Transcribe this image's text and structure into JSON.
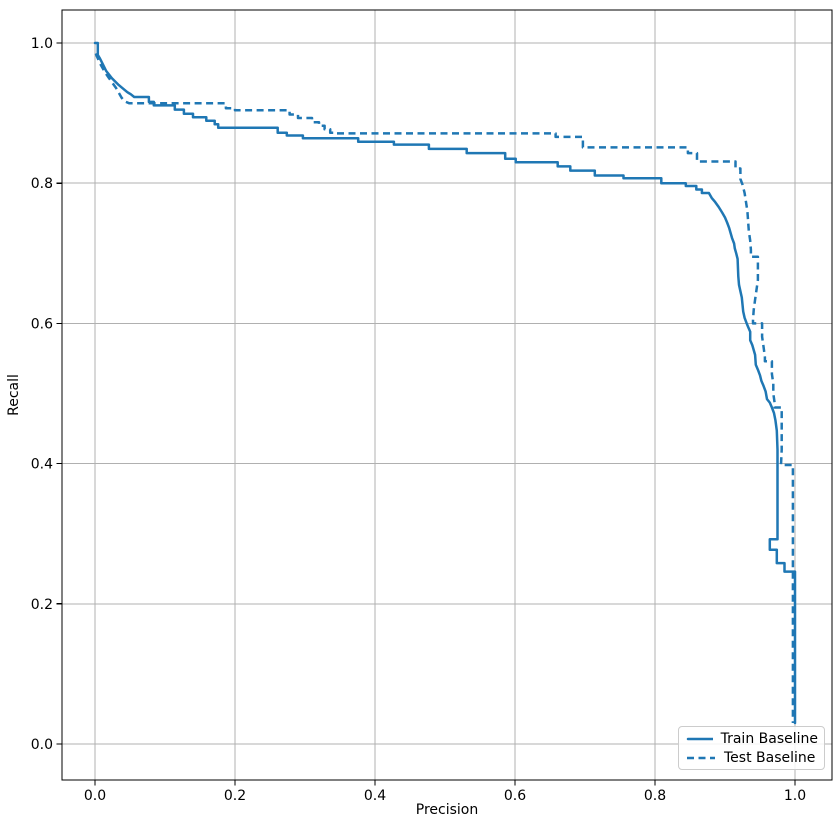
{
  "figure": {
    "background": "#ffffff"
  },
  "chart_data": {
    "type": "line",
    "title": "",
    "xlabel": "Precision",
    "ylabel": "Recall",
    "xlim": [
      -0.05,
      1.05
    ],
    "ylim": [
      -0.05,
      1.05
    ],
    "grid": true,
    "grid_color": "#b0b0b0",
    "legend_position": "lower right",
    "x_ticks": [
      0.0,
      0.2,
      0.4,
      0.6,
      0.8,
      1.0
    ],
    "y_ticks": [
      0.0,
      0.2,
      0.4,
      0.6,
      0.8,
      1.0
    ],
    "x_tick_labels": [
      "0.0",
      "0.2",
      "0.4",
      "0.6",
      "0.8",
      "1.0"
    ],
    "y_tick_labels": [
      "0.0",
      "0.2",
      "0.4",
      "0.6",
      "0.8",
      "1.0"
    ],
    "series": [
      {
        "name": "Train Baseline",
        "style": "solid",
        "color": "#1f77b4",
        "linewidth": 2.5,
        "points": [
          [
            0.0,
            1.0
          ],
          [
            0.004,
            1.0
          ],
          [
            0.004,
            0.983
          ],
          [
            0.007,
            0.978
          ],
          [
            0.01,
            0.972
          ],
          [
            0.013,
            0.966
          ],
          [
            0.016,
            0.96
          ],
          [
            0.02,
            0.955
          ],
          [
            0.024,
            0.95
          ],
          [
            0.029,
            0.945
          ],
          [
            0.034,
            0.94
          ],
          [
            0.04,
            0.935
          ],
          [
            0.046,
            0.93
          ],
          [
            0.051,
            0.927
          ],
          [
            0.056,
            0.923
          ],
          [
            0.077,
            0.923
          ],
          [
            0.077,
            0.916
          ],
          [
            0.084,
            0.916
          ],
          [
            0.084,
            0.911
          ],
          [
            0.114,
            0.911
          ],
          [
            0.114,
            0.905
          ],
          [
            0.127,
            0.905
          ],
          [
            0.127,
            0.899
          ],
          [
            0.14,
            0.899
          ],
          [
            0.14,
            0.894
          ],
          [
            0.159,
            0.894
          ],
          [
            0.159,
            0.889
          ],
          [
            0.171,
            0.889
          ],
          [
            0.171,
            0.884
          ],
          [
            0.176,
            0.884
          ],
          [
            0.176,
            0.879
          ],
          [
            0.261,
            0.879
          ],
          [
            0.261,
            0.872
          ],
          [
            0.274,
            0.872
          ],
          [
            0.274,
            0.868
          ],
          [
            0.297,
            0.868
          ],
          [
            0.297,
            0.864
          ],
          [
            0.376,
            0.864
          ],
          [
            0.376,
            0.859
          ],
          [
            0.427,
            0.859
          ],
          [
            0.427,
            0.855
          ],
          [
            0.477,
            0.855
          ],
          [
            0.477,
            0.849
          ],
          [
            0.531,
            0.849
          ],
          [
            0.531,
            0.843
          ],
          [
            0.586,
            0.843
          ],
          [
            0.586,
            0.835
          ],
          [
            0.601,
            0.835
          ],
          [
            0.601,
            0.83
          ],
          [
            0.661,
            0.83
          ],
          [
            0.661,
            0.824
          ],
          [
            0.679,
            0.824
          ],
          [
            0.679,
            0.818
          ],
          [
            0.714,
            0.818
          ],
          [
            0.714,
            0.811
          ],
          [
            0.755,
            0.811
          ],
          [
            0.755,
            0.807
          ],
          [
            0.809,
            0.807
          ],
          [
            0.809,
            0.8
          ],
          [
            0.844,
            0.8
          ],
          [
            0.844,
            0.796
          ],
          [
            0.859,
            0.796
          ],
          [
            0.859,
            0.791
          ],
          [
            0.867,
            0.791
          ],
          [
            0.867,
            0.786
          ],
          [
            0.877,
            0.786
          ],
          [
            0.881,
            0.779
          ],
          [
            0.886,
            0.773
          ],
          [
            0.891,
            0.766
          ],
          [
            0.896,
            0.758
          ],
          [
            0.9,
            0.751
          ],
          [
            0.903,
            0.744
          ],
          [
            0.906,
            0.736
          ],
          [
            0.908,
            0.729
          ],
          [
            0.91,
            0.722
          ],
          [
            0.913,
            0.714
          ],
          [
            0.914,
            0.707
          ],
          [
            0.916,
            0.7
          ],
          [
            0.918,
            0.692
          ],
          [
            0.919,
            0.667
          ],
          [
            0.92,
            0.655
          ],
          [
            0.922,
            0.646
          ],
          [
            0.924,
            0.637
          ],
          [
            0.925,
            0.627
          ],
          [
            0.926,
            0.617
          ],
          [
            0.928,
            0.608
          ],
          [
            0.931,
            0.6
          ],
          [
            0.933,
            0.595
          ],
          [
            0.936,
            0.588
          ],
          [
            0.936,
            0.576
          ],
          [
            0.939,
            0.569
          ],
          [
            0.941,
            0.562
          ],
          [
            0.943,
            0.555
          ],
          [
            0.944,
            0.541
          ],
          [
            0.947,
            0.534
          ],
          [
            0.95,
            0.526
          ],
          [
            0.952,
            0.518
          ],
          [
            0.955,
            0.511
          ],
          [
            0.958,
            0.503
          ],
          [
            0.96,
            0.492
          ],
          [
            0.964,
            0.487
          ],
          [
            0.967,
            0.48
          ],
          [
            0.97,
            0.472
          ],
          [
            0.972,
            0.462
          ],
          [
            0.974,
            0.447
          ],
          [
            0.975,
            0.42
          ],
          [
            0.975,
            0.292
          ],
          [
            0.964,
            0.292
          ],
          [
            0.964,
            0.277
          ],
          [
            0.974,
            0.277
          ],
          [
            0.974,
            0.258
          ],
          [
            0.985,
            0.258
          ],
          [
            0.985,
            0.246
          ],
          [
            1.0,
            0.246
          ],
          [
            1.0,
            0.03
          ]
        ]
      },
      {
        "name": "Test Baseline",
        "style": "dashed",
        "color": "#1f77b4",
        "linewidth": 2.5,
        "points": [
          [
            0.001,
            0.985
          ],
          [
            0.004,
            0.978
          ],
          [
            0.007,
            0.971
          ],
          [
            0.011,
            0.964
          ],
          [
            0.015,
            0.957
          ],
          [
            0.02,
            0.95
          ],
          [
            0.025,
            0.943
          ],
          [
            0.03,
            0.936
          ],
          [
            0.034,
            0.929
          ],
          [
            0.038,
            0.922
          ],
          [
            0.042,
            0.917
          ],
          [
            0.049,
            0.914
          ],
          [
            0.187,
            0.914
          ],
          [
            0.187,
            0.907
          ],
          [
            0.2,
            0.907
          ],
          [
            0.2,
            0.904
          ],
          [
            0.278,
            0.904
          ],
          [
            0.278,
            0.898
          ],
          [
            0.29,
            0.898
          ],
          [
            0.29,
            0.893
          ],
          [
            0.31,
            0.893
          ],
          [
            0.31,
            0.887
          ],
          [
            0.32,
            0.887
          ],
          [
            0.32,
            0.882
          ],
          [
            0.328,
            0.882
          ],
          [
            0.328,
            0.877
          ],
          [
            0.336,
            0.877
          ],
          [
            0.336,
            0.872
          ],
          [
            0.345,
            0.872
          ],
          [
            0.345,
            0.871
          ],
          [
            0.658,
            0.871
          ],
          [
            0.658,
            0.866
          ],
          [
            0.697,
            0.866
          ],
          [
            0.697,
            0.851
          ],
          [
            0.847,
            0.851
          ],
          [
            0.847,
            0.843
          ],
          [
            0.86,
            0.843
          ],
          [
            0.86,
            0.831
          ],
          [
            0.915,
            0.831
          ],
          [
            0.915,
            0.821
          ],
          [
            0.922,
            0.821
          ],
          [
            0.922,
            0.806
          ],
          [
            0.925,
            0.798
          ],
          [
            0.928,
            0.786
          ],
          [
            0.93,
            0.773
          ],
          [
            0.932,
            0.76
          ],
          [
            0.933,
            0.746
          ],
          [
            0.934,
            0.732
          ],
          [
            0.936,
            0.718
          ],
          [
            0.937,
            0.705
          ],
          [
            0.937,
            0.695
          ],
          [
            0.947,
            0.695
          ],
          [
            0.947,
            0.662
          ],
          [
            0.945,
            0.648
          ],
          [
            0.943,
            0.634
          ],
          [
            0.941,
            0.619
          ],
          [
            0.94,
            0.605
          ],
          [
            0.94,
            0.6
          ],
          [
            0.953,
            0.6
          ],
          [
            0.953,
            0.581
          ],
          [
            0.955,
            0.567
          ],
          [
            0.957,
            0.552
          ],
          [
            0.957,
            0.546
          ],
          [
            0.967,
            0.546
          ],
          [
            0.967,
            0.528
          ],
          [
            0.969,
            0.514
          ],
          [
            0.969,
            0.5
          ],
          [
            0.971,
            0.486
          ],
          [
            0.971,
            0.48
          ],
          [
            0.981,
            0.48
          ],
          [
            0.981,
            0.42
          ],
          [
            0.98,
            0.398
          ],
          [
            0.997,
            0.398
          ],
          [
            0.997,
            0.03
          ]
        ]
      }
    ]
  }
}
